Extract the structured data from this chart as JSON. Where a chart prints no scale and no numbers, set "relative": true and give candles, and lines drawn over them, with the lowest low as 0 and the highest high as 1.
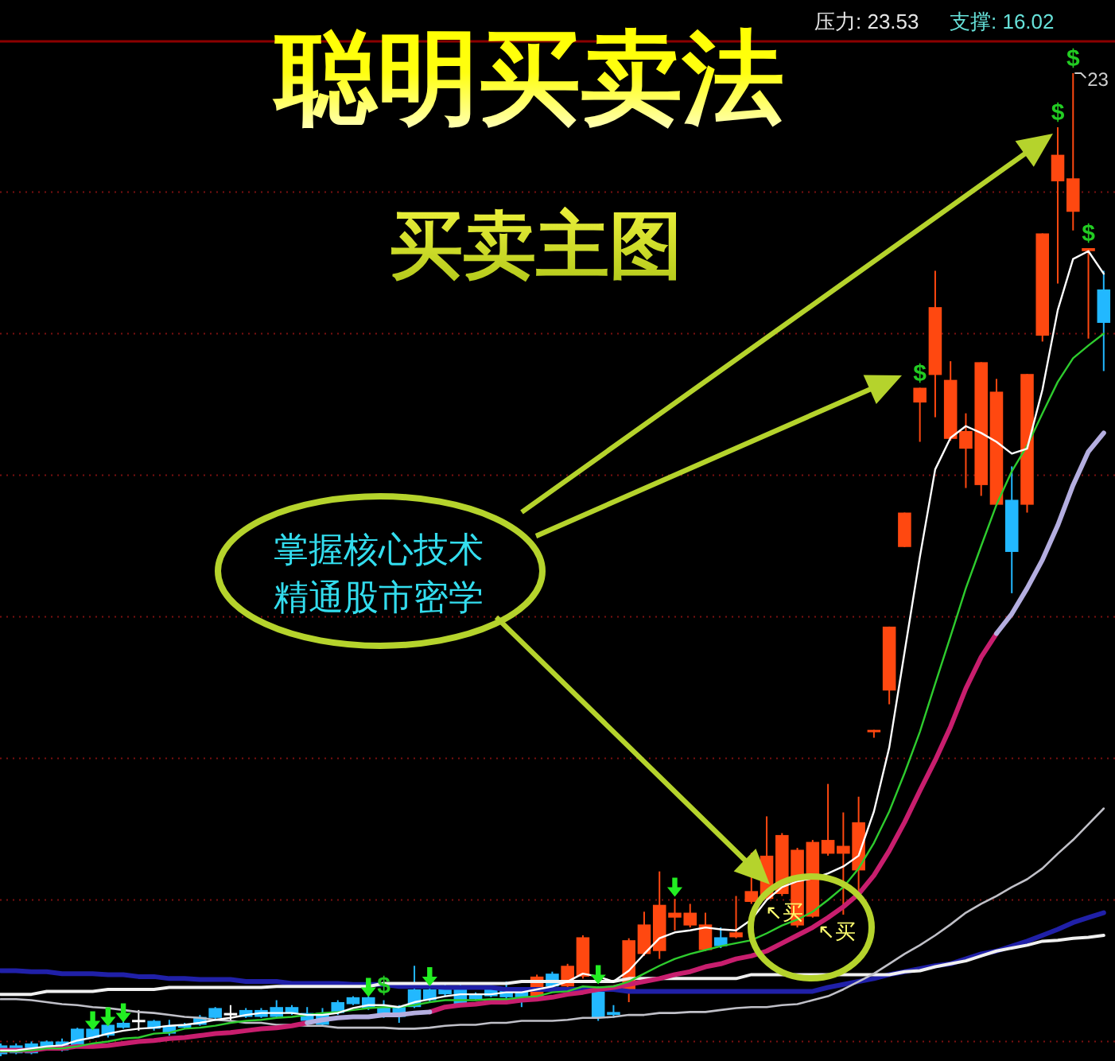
{
  "chart_data": {
    "type": "candlestick",
    "title": "聪明买卖法",
    "subtitle": "买卖主图",
    "relative": true,
    "categories": [
      null,
      null,
      null,
      null,
      null,
      null,
      null,
      null,
      null,
      null,
      null,
      null,
      null,
      null,
      null,
      null,
      null,
      null,
      null,
      null,
      null,
      null,
      null,
      null,
      null,
      null,
      null,
      null,
      null,
      null,
      null,
      null,
      null,
      null,
      null,
      null,
      null,
      null,
      null,
      null,
      null,
      null,
      null,
      null,
      null,
      null,
      null,
      null,
      null,
      null,
      null,
      null,
      null,
      null,
      null,
      null,
      null,
      null,
      null,
      null,
      null,
      null,
      null,
      null,
      null,
      null,
      null,
      null,
      null,
      null,
      null,
      null,
      null
    ],
    "annotations": [
      "压力: 23.53",
      "支撑: 16.02",
      "23",
      "掌握核心技术",
      "精通股市密学",
      "↖买",
      "↖买"
    ],
    "ref_lines": [
      {
        "axis": "y",
        "value": 0.015,
        "color": "#7a1010",
        "line_style": "dotted"
      },
      {
        "axis": "y",
        "value": 0.159,
        "color": "#7a1010",
        "line_style": "dotted"
      },
      {
        "axis": "y",
        "value": 0.303,
        "color": "#7a1010",
        "line_style": "dotted"
      },
      {
        "axis": "y",
        "value": 0.447,
        "color": "#7a1010",
        "line_style": "dotted"
      },
      {
        "axis": "y",
        "value": 0.591,
        "color": "#7a1010",
        "line_style": "dotted"
      },
      {
        "axis": "y",
        "value": 0.735,
        "color": "#7a1010",
        "line_style": "dotted"
      },
      {
        "axis": "y",
        "value": 0.879,
        "color": "#7a1010",
        "line_style": "dotted"
      }
    ],
    "ohlc": [
      [
        0.011,
        0.013,
        0,
        0.002
      ],
      [
        0.011,
        0.013,
        0.002,
        0.003
      ],
      [
        0.013,
        0.015,
        0.002,
        0.003
      ],
      [
        0.015,
        0.016,
        0.008,
        0.01
      ],
      [
        0.015,
        0.018,
        0.005,
        0.006
      ],
      [
        0.028,
        0.029,
        0.01,
        0.011
      ],
      [
        0.028,
        0.029,
        0.018,
        0.019
      ],
      [
        0.032,
        0.034,
        0.019,
        0.021
      ],
      [
        0.034,
        0.036,
        0.028,
        0.029
      ],
      [
        0.037,
        0.047,
        0.026,
        0.037
      ],
      [
        0.036,
        0.037,
        0.026,
        0.028
      ],
      [
        0.031,
        0.037,
        0.021,
        0.023
      ],
      [
        0.032,
        0.034,
        0.028,
        0.029
      ],
      [
        0.04,
        0.042,
        0.031,
        0.032
      ],
      [
        0.049,
        0.05,
        0.037,
        0.039
      ],
      [
        0.044,
        0.052,
        0.036,
        0.044
      ],
      [
        0.047,
        0.049,
        0.039,
        0.04
      ],
      [
        0.047,
        0.049,
        0.039,
        0.04
      ],
      [
        0.05,
        0.057,
        0.039,
        0.04
      ],
      [
        0.05,
        0.052,
        0.042,
        0.044
      ],
      [
        0.044,
        0.05,
        0.034,
        0.036
      ],
      [
        0.044,
        0.049,
        0.031,
        0.032
      ],
      [
        0.055,
        0.057,
        0.042,
        0.044
      ],
      [
        0.06,
        0.061,
        0.052,
        0.053
      ],
      [
        0.06,
        0.061,
        0.047,
        0.049
      ],
      [
        0.05,
        0.057,
        0.039,
        0.04
      ],
      [
        0.05,
        0.052,
        0.034,
        0.04
      ],
      [
        0.068,
        0.092,
        0.049,
        0.05
      ],
      [
        0.068,
        0.07,
        0.055,
        0.057
      ],
      [
        0.071,
        0.073,
        0.061,
        0.063
      ],
      [
        0.071,
        0.073,
        0.052,
        0.053
      ],
      [
        0.063,
        0.065,
        0.057,
        0.058
      ],
      [
        0.068,
        0.071,
        0.06,
        0.061
      ],
      [
        0.068,
        0.076,
        0.058,
        0.06
      ],
      [
        0.068,
        0.07,
        0.05,
        0.06
      ],
      [
        0.06,
        0.083,
        0.058,
        0.081
      ],
      [
        0.084,
        0.086,
        0.07,
        0.071
      ],
      [
        0.071,
        0.094,
        0.07,
        0.092
      ],
      [
        0.081,
        0.123,
        0.079,
        0.121
      ],
      [
        0.07,
        0.071,
        0.036,
        0.039
      ],
      [
        0.045,
        0.052,
        0.039,
        0.042
      ],
      [
        0.066,
        0.12,
        0.055,
        0.118
      ],
      [
        0.104,
        0.147,
        0.102,
        0.134
      ],
      [
        0.107,
        0.188,
        0.099,
        0.154
      ],
      [
        0.141,
        0.16,
        0.128,
        0.146
      ],
      [
        0.133,
        0.155,
        0.131,
        0.146
      ],
      [
        0.108,
        0.146,
        0.107,
        0.134
      ],
      [
        0.121,
        0.131,
        0.11,
        0.112
      ],
      [
        0.121,
        0.163,
        0.12,
        0.126
      ],
      [
        0.157,
        0.207,
        0.155,
        0.168
      ],
      [
        0.16,
        0.244,
        0.159,
        0.204
      ],
      [
        0.165,
        0.227,
        0.163,
        0.225
      ],
      [
        0.133,
        0.212,
        0.131,
        0.21
      ],
      [
        0.142,
        0.22,
        0.141,
        0.218
      ],
      [
        0.206,
        0.277,
        0.204,
        0.22
      ],
      [
        0.206,
        0.248,
        0.144,
        0.214
      ],
      [
        0.189,
        0.264,
        0.168,
        0.238
      ],
      [
        0.332,
        0.332,
        0.324,
        0.332
      ],
      [
        0.372,
        0.437,
        0.358,
        0.437
      ],
      [
        0.518,
        0.553,
        0.518,
        0.553
      ],
      [
        0.665,
        0.68,
        0.625,
        0.68
      ],
      [
        0.693,
        0.799,
        0.65,
        0.762
      ],
      [
        0.628,
        0.707,
        0.626,
        0.688
      ],
      [
        0.618,
        0.654,
        0.578,
        0.636
      ],
      [
        0.581,
        0.706,
        0.57,
        0.706
      ],
      [
        0.561,
        0.689,
        0.56,
        0.676
      ],
      [
        0.566,
        0.6,
        0.471,
        0.513
      ],
      [
        0.561,
        0.694,
        0.553,
        0.694
      ],
      [
        0.733,
        0.837,
        0.727,
        0.837
      ],
      [
        0.89,
        0.945,
        0.786,
        0.917
      ],
      [
        0.859,
        1.0,
        0.84,
        0.893
      ],
      [
        0.819,
        0.822,
        0.73,
        0.822
      ],
      [
        0.78,
        0.799,
        0.697,
        0.746
      ]
    ],
    "colors": [
      "#22b8ff",
      "#22b8ff",
      "#22b8ff",
      "#22b8ff",
      "#22b8ff",
      "#22b8ff",
      "#22b8ff",
      "#22b8ff",
      "#22b8ff",
      "#ffffff",
      "#22b8ff",
      "#22b8ff",
      "#22b8ff",
      "#22b8ff",
      "#22b8ff",
      "#ffffff",
      "#22b8ff",
      "#22b8ff",
      "#22b8ff",
      "#22b8ff",
      "#22b8ff",
      "#22b8ff",
      "#22b8ff",
      "#22b8ff",
      "#22b8ff",
      "#22b8ff",
      "#22b8ff",
      "#22b8ff",
      "#22b8ff",
      "#22b8ff",
      "#22b8ff",
      "#22b8ff",
      "#22b8ff",
      "#22b8ff",
      "#22b8ff",
      "#ff4810",
      "#22b8ff",
      "#ff4810",
      "#ff4810",
      "#22b8ff",
      "#22b8ff",
      "#ff4810",
      "#ff4810",
      "#ff4810",
      "#ff4810",
      "#ff4810",
      "#ff4810",
      "#22b8ff",
      "#ff4810",
      "#ff4810",
      "#ff4810",
      "#ff4810",
      "#ff4810",
      "#ff4810",
      "#ff4810",
      "#ff4810",
      "#ff4810",
      "#ff4810",
      "#ff4810",
      "#ff4810",
      "#ff4810",
      "#ff4810",
      "#ff4810",
      "#ff4810",
      "#ff4810",
      "#ff4810",
      "#22b8ff",
      "#ff4810",
      "#ff4810",
      "#ff4810",
      "#ff4810",
      "#ff4810",
      "#22b8ff"
    ],
    "value_labels": [
      null,
      null,
      null,
      null,
      null,
      null,
      null,
      null,
      null,
      null,
      null,
      null,
      null,
      null,
      null,
      null,
      null,
      null,
      null,
      null,
      null,
      null,
      null,
      null,
      null,
      "$",
      null,
      null,
      null,
      null,
      null,
      null,
      null,
      null,
      null,
      null,
      null,
      null,
      null,
      null,
      null,
      null,
      null,
      null,
      null,
      null,
      null,
      null,
      null,
      null,
      null,
      null,
      null,
      null,
      null,
      null,
      null,
      null,
      null,
      null,
      "$",
      null,
      null,
      null,
      null,
      null,
      null,
      null,
      null,
      "$",
      "$",
      "$",
      null
    ],
    "series": [
      {
        "type": "line",
        "color": "#2020a8",
        "values": [
          0.087,
          0.087,
          0.086,
          0.086,
          0.084,
          0.084,
          0.084,
          0.083,
          0.083,
          0.081,
          0.081,
          0.079,
          0.079,
          0.078,
          0.078,
          0.078,
          0.076,
          0.076,
          0.076,
          0.074,
          0.074,
          0.074,
          0.074,
          0.073,
          0.073,
          0.073,
          0.071,
          0.071,
          0.071,
          0.07,
          0.07,
          0.07,
          0.07,
          0.068,
          0.068,
          0.068,
          0.068,
          0.068,
          0.068,
          0.068,
          0.068,
          0.066,
          0.066,
          0.066,
          0.066,
          0.066,
          0.066,
          0.066,
          0.066,
          0.066,
          0.066,
          0.066,
          0.066,
          0.066,
          0.07,
          0.073,
          0.076,
          0.079,
          0.083,
          0.086,
          0.089,
          0.092,
          0.094,
          0.099,
          0.104,
          0.107,
          0.112,
          0.117,
          0.123,
          0.129,
          0.136,
          0.141,
          0.146
        ]
      },
      {
        "type": "line",
        "color": "#f0f0f0",
        "values": [
          0.063,
          0.063,
          0.063,
          0.066,
          0.066,
          0.066,
          0.066,
          0.068,
          0.068,
          0.068,
          0.068,
          0.07,
          0.07,
          0.07,
          0.07,
          0.07,
          0.07,
          0.07,
          0.071,
          0.071,
          0.071,
          0.071,
          0.071,
          0.071,
          0.071,
          0.074,
          0.074,
          0.074,
          0.074,
          0.074,
          0.074,
          0.074,
          0.074,
          0.074,
          0.076,
          0.076,
          0.076,
          0.076,
          0.076,
          0.076,
          0.076,
          0.079,
          0.079,
          0.079,
          0.079,
          0.079,
          0.079,
          0.079,
          0.079,
          0.083,
          0.083,
          0.083,
          0.083,
          0.083,
          0.083,
          0.083,
          0.083,
          0.083,
          0.083,
          0.086,
          0.087,
          0.091,
          0.094,
          0.097,
          0.102,
          0.107,
          0.11,
          0.113,
          0.117,
          0.118,
          0.12,
          0.121,
          0.123
        ]
      },
      {
        "type": "line",
        "color": "#c0c0c8",
        "values": [
          0.058,
          0.058,
          0.057,
          0.055,
          0.053,
          0.052,
          0.05,
          0.049,
          0.047,
          0.045,
          0.044,
          0.042,
          0.04,
          0.039,
          0.037,
          0.036,
          0.034,
          0.034,
          0.032,
          0.032,
          0.031,
          0.031,
          0.029,
          0.029,
          0.029,
          0.029,
          0.028,
          0.028,
          0.029,
          0.031,
          0.032,
          0.032,
          0.034,
          0.034,
          0.036,
          0.036,
          0.036,
          0.037,
          0.039,
          0.039,
          0.04,
          0.042,
          0.042,
          0.044,
          0.044,
          0.045,
          0.045,
          0.047,
          0.049,
          0.05,
          0.05,
          0.052,
          0.053,
          0.057,
          0.061,
          0.068,
          0.076,
          0.084,
          0.094,
          0.104,
          0.113,
          0.123,
          0.134,
          0.146,
          0.155,
          0.163,
          0.172,
          0.18,
          0.191,
          0.206,
          0.22,
          0.236,
          0.252
        ]
      },
      {
        "type": "line",
        "color": "#c81e6e",
        "values": [
          0.006,
          0.006,
          0.006,
          0.008,
          0.008,
          0.01,
          0.01,
          0.011,
          0.013,
          0.015,
          0.016,
          0.018,
          0.019,
          0.021,
          0.023,
          0.024,
          0.026,
          0.028,
          0.029,
          0.031,
          0.034,
          null,
          null,
          null,
          null,
          null,
          null,
          null,
          0.045,
          0.05,
          0.052,
          0.053,
          0.055,
          0.055,
          0.057,
          0.058,
          0.06,
          0.063,
          0.065,
          0.068,
          0.07,
          0.073,
          0.076,
          0.079,
          0.083,
          0.086,
          0.091,
          0.094,
          0.099,
          0.102,
          0.107,
          0.115,
          0.123,
          0.131,
          0.141,
          0.152,
          0.165,
          0.184,
          0.209,
          0.238,
          0.27,
          0.301,
          0.335,
          0.374,
          0.406,
          0.43,
          null,
          null,
          null,
          null,
          null,
          null,
          null
        ]
      },
      {
        "type": "line",
        "color": "#b4aee0",
        "values": [
          null,
          null,
          null,
          null,
          null,
          null,
          null,
          null,
          null,
          null,
          null,
          null,
          null,
          null,
          null,
          null,
          null,
          null,
          null,
          null,
          0.034,
          0.037,
          0.039,
          0.04,
          0.04,
          0.042,
          0.042,
          0.044,
          0.045,
          null,
          null,
          null,
          null,
          null,
          null,
          null,
          null,
          null,
          null,
          null,
          null,
          null,
          null,
          null,
          null,
          null,
          null,
          null,
          null,
          null,
          null,
          null,
          null,
          null,
          null,
          null,
          null,
          null,
          null,
          null,
          null,
          null,
          null,
          null,
          null,
          0.43,
          0.45,
          0.476,
          0.505,
          0.54,
          0.581,
          0.615,
          0.634
        ]
      },
      {
        "type": "line",
        "color": "#2ecc2e",
        "values": [
          0.005,
          0.005,
          0.006,
          0.008,
          0.008,
          0.01,
          0.013,
          0.015,
          0.018,
          0.019,
          0.023,
          0.024,
          0.028,
          0.029,
          0.031,
          0.034,
          0.036,
          0.037,
          0.039,
          0.04,
          0.042,
          0.044,
          0.045,
          0.047,
          0.049,
          0.05,
          0.05,
          0.052,
          0.055,
          0.057,
          0.057,
          0.057,
          0.058,
          0.058,
          0.06,
          0.061,
          0.065,
          0.066,
          0.071,
          0.07,
          0.071,
          0.076,
          0.084,
          0.092,
          0.099,
          0.104,
          0.108,
          0.112,
          0.115,
          0.118,
          0.125,
          0.133,
          0.139,
          0.147,
          0.159,
          0.172,
          0.191,
          0.217,
          0.249,
          0.288,
          0.33,
          0.379,
          0.427,
          0.476,
          0.519,
          0.561,
          0.595,
          0.621,
          0.654,
          0.686,
          0.71,
          0.723,
          0.735
        ]
      },
      {
        "type": "line",
        "color": "#ffffff",
        "values": [
          0.006,
          0.006,
          0.008,
          0.01,
          0.011,
          0.016,
          0.019,
          0.023,
          0.026,
          0.028,
          0.029,
          0.031,
          0.032,
          0.034,
          0.037,
          0.039,
          0.042,
          0.044,
          0.044,
          0.044,
          0.042,
          0.042,
          0.044,
          0.049,
          0.052,
          0.052,
          0.05,
          0.055,
          0.058,
          0.061,
          0.063,
          0.063,
          0.063,
          0.065,
          0.065,
          0.068,
          0.071,
          0.076,
          0.084,
          0.081,
          0.076,
          0.087,
          0.104,
          0.12,
          0.126,
          0.128,
          0.131,
          0.129,
          0.128,
          0.139,
          0.159,
          0.172,
          0.178,
          0.181,
          0.186,
          0.193,
          0.204,
          0.249,
          0.314,
          0.411,
          0.508,
          0.597,
          0.629,
          0.641,
          0.634,
          0.625,
          0.613,
          0.618,
          0.678,
          0.759,
          0.811,
          0.819,
          0.796
        ]
      },
      {
        "type": "scatter",
        "marker": "triangle",
        "color": "#22ee22",
        "values": [
          null,
          null,
          null,
          null,
          null,
          null,
          0.036,
          0.04,
          0.044,
          null,
          null,
          null,
          null,
          null,
          null,
          null,
          null,
          null,
          null,
          null,
          null,
          null,
          null,
          null,
          0.07,
          null,
          null,
          null,
          0.081,
          null,
          null,
          null,
          null,
          null,
          null,
          null,
          null,
          null,
          null,
          0.083,
          null,
          null,
          null,
          null,
          0.172,
          null,
          null,
          null,
          null,
          null,
          null,
          null,
          null,
          null,
          null,
          null,
          null,
          null,
          null,
          null,
          null,
          null,
          null,
          null,
          null,
          null,
          null,
          null,
          null,
          null,
          null,
          null,
          null
        ]
      }
    ]
  }
}
